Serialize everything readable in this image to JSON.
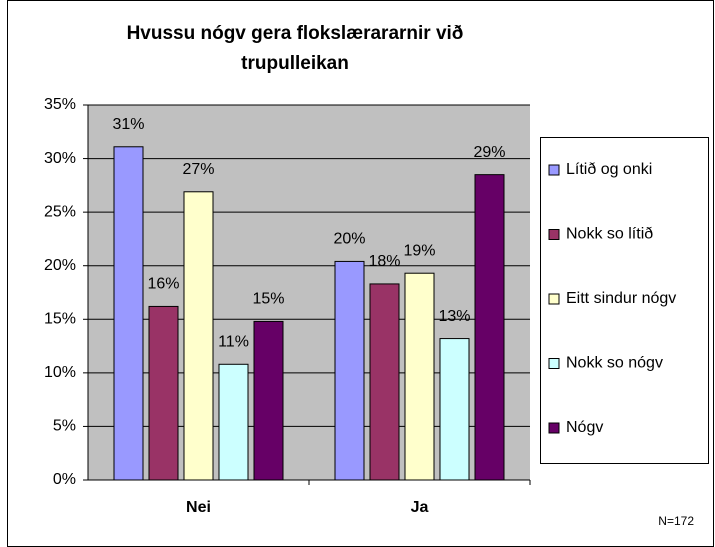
{
  "chart_data": {
    "type": "bar",
    "title": [
      "Hvussu nógv gera flokslærararnir við",
      "trupulleikan"
    ],
    "categories": [
      "Nei",
      "Ja"
    ],
    "series": [
      {
        "name": "Lítið og onki",
        "color": "#9999ff",
        "values": [
          31.1,
          20.4
        ],
        "value_labels": [
          "31%",
          "20%"
        ]
      },
      {
        "name": "Nokk so lítið",
        "color": "#993366",
        "values": [
          16.2,
          18.3
        ],
        "value_labels": [
          "16%",
          "18%"
        ]
      },
      {
        "name": "Eitt sindur nógv",
        "color": "#ffffcc",
        "values": [
          26.9,
          19.3
        ],
        "value_labels": [
          "27%",
          "19%"
        ]
      },
      {
        "name": "Nokk so nógv",
        "color": "#ccffff",
        "values": [
          10.8,
          13.2
        ],
        "value_labels": [
          "11%",
          "13%"
        ]
      },
      {
        "name": "Nógv",
        "color": "#660066",
        "values": [
          14.8,
          28.5
        ],
        "value_labels": [
          "15%",
          "29%"
        ]
      }
    ],
    "ylim": [
      0,
      35
    ],
    "yticks": [
      {
        "value": 0,
        "label": "0%"
      },
      {
        "value": 5,
        "label": "5%"
      },
      {
        "value": 10,
        "label": "10%"
      },
      {
        "value": 15,
        "label": "15%"
      },
      {
        "value": 20,
        "label": "20%"
      },
      {
        "value": 25,
        "label": "25%"
      },
      {
        "value": 30,
        "label": "30%"
      },
      {
        "value": 35,
        "label": "35%"
      }
    ],
    "grid": true,
    "legend": "right",
    "annotation": "N=172"
  }
}
